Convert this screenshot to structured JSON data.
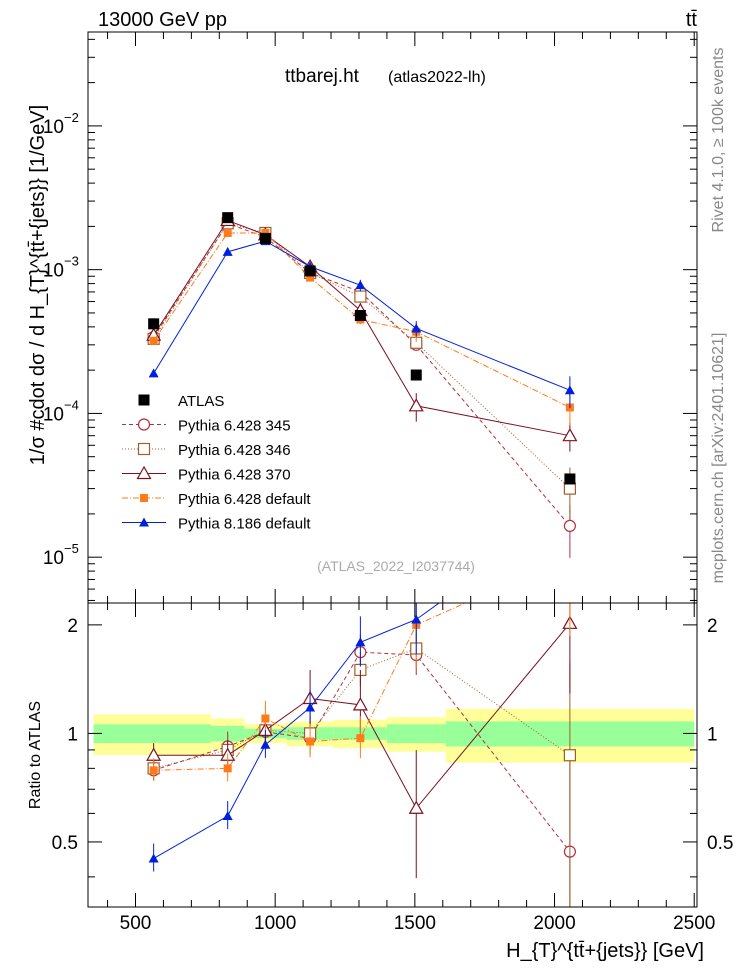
{
  "header": {
    "left": "13000 GeV pp",
    "right": "tt̄"
  },
  "side": {
    "rivet": "Rivet 4.1.0, ≥ 100k events",
    "mcplots": "mcplots.cern.ch [arXiv:2401.10621]"
  },
  "chart_data": {
    "type": "line",
    "title": "ttbarej.ht",
    "subtitle": "(atlas2022-lh)",
    "analysis": "(ATLAS_2022_I2037744)",
    "xlabel": "H_{T}^{tt̄+{jets}} [GeV]",
    "ylabel": "1/σ #cdot dσ / d H_{T}^{tt̄+{jets}} [1/GeV]",
    "ratio_ylabel": "Ratio to ATLAS",
    "xlim": [
      330,
      2510
    ],
    "ylim": [
      4.8e-06,
      0.045
    ],
    "ratio_ylim": [
      0.33,
      2.3
    ],
    "x_ticks": [
      500,
      1000,
      1500,
      2000,
      2500
    ],
    "y_ticks": [
      {
        "value": 1e-05,
        "base": "10",
        "exp": "−5"
      },
      {
        "value": 0.0001,
        "base": "10",
        "exp": "−4"
      },
      {
        "value": 0.001,
        "base": "10",
        "exp": "−3"
      },
      {
        "value": 0.01,
        "base": "10",
        "exp": "−2"
      }
    ],
    "ratio_ticks": [
      0.5,
      1,
      2
    ],
    "bins": [
      {
        "lo": 350,
        "hi": 770
      },
      {
        "lo": 770,
        "hi": 890
      },
      {
        "lo": 890,
        "hi": 1040
      },
      {
        "lo": 1040,
        "hi": 1210
      },
      {
        "lo": 1210,
        "hi": 1400
      },
      {
        "lo": 1400,
        "hi": 1610
      },
      {
        "lo": 1610,
        "hi": 2500
      }
    ],
    "x": [
      565,
      830,
      965,
      1125,
      1305,
      1505,
      2055
    ],
    "data": {
      "name": "ATLAS",
      "values": [
        0.00042,
        0.0023,
        0.00165,
        0.00098,
        0.00048,
        0.000185,
        3.5e-05
      ],
      "band_inner": [
        0.06,
        0.05,
        0.03,
        0.04,
        0.04,
        0.06,
        0.08
      ],
      "band_outer": [
        0.13,
        0.1,
        0.06,
        0.08,
        0.09,
        0.11,
        0.17
      ]
    },
    "series": [
      {
        "name": "Pythia 6.428 345",
        "marker": "circle-open",
        "dash": "4,3",
        "color": "#b03040",
        "values": [
          0.00034,
          0.0021,
          0.00168,
          0.00095,
          0.0007,
          0.0003,
          1.65e-05
        ],
        "ratio": [
          0.79,
          0.92,
          1.01,
          0.97,
          1.68,
          1.65,
          0.47
        ],
        "err": [
          0.08,
          0.1,
          0.1,
          0.12,
          0.12,
          0.15,
          0.8
        ]
      },
      {
        "name": "Pythia 6.428 346",
        "marker": "square-open",
        "dash": "1,2",
        "color": "#a0602a",
        "values": [
          0.00033,
          0.0021,
          0.0018,
          0.00095,
          0.00065,
          0.00031,
          3e-05
        ],
        "ratio": [
          0.8,
          0.9,
          1.02,
          1.0,
          1.5,
          1.72,
          0.87
        ],
        "err": [
          0.08,
          0.1,
          0.1,
          0.12,
          0.12,
          0.15,
          0.8
        ]
      },
      {
        "name": "Pythia 6.428 370",
        "marker": "triangle-open",
        "dash": "",
        "color": "#7a1020",
        "values": [
          0.00035,
          0.0022,
          0.00175,
          0.00105,
          0.00052,
          0.000113,
          7e-05
        ],
        "ratio": [
          0.87,
          0.87,
          1.02,
          1.25,
          1.2,
          0.62,
          2.02
        ],
        "err": [
          0.08,
          0.1,
          0.1,
          0.2,
          0.25,
          0.45,
          0.45
        ]
      },
      {
        "name": "Pythia 6.428 default",
        "marker": "square-filled",
        "dash": "6,2,1,2",
        "color": "#ff7a1a",
        "values": [
          0.00032,
          0.0018,
          0.0018,
          0.00088,
          0.00045,
          0.00037,
          0.00011
        ],
        "ratio": [
          0.79,
          0.8,
          1.1,
          0.95,
          0.97,
          2.0,
          3.1
        ],
        "err": [
          0.08,
          0.1,
          0.12,
          0.12,
          0.15,
          0.3,
          0.5
        ]
      },
      {
        "name": "Pythia 8.186 default",
        "marker": "triangle-filled",
        "dash": "",
        "color": "#0020dd",
        "values": [
          0.00019,
          0.00133,
          0.00158,
          0.00105,
          0.00078,
          0.00039,
          0.000145
        ],
        "ratio": [
          0.45,
          0.59,
          0.93,
          1.18,
          1.79,
          2.07,
          4.2
        ],
        "err": [
          0.1,
          0.1,
          0.1,
          0.12,
          0.18,
          0.25,
          0.5
        ]
      }
    ]
  }
}
